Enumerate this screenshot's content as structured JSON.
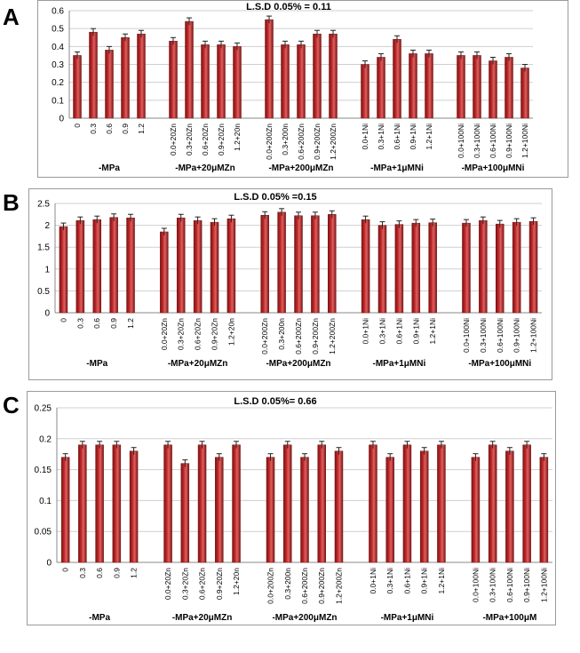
{
  "colors": {
    "bar": "#c0282a",
    "bar_dark": "#7a1414",
    "bar_light": "#e06060",
    "grid": "#cfcfcf",
    "frame": "#9a9a9a"
  },
  "chart_data": [
    {
      "panel": "A",
      "type": "bar",
      "lsd": "L.S.D 0.05% = 0.11",
      "ylim": [
        0,
        0.6
      ],
      "yticks": [
        "0",
        "0.1",
        "0.2",
        "0.3",
        "0.4",
        "0.5",
        "0.6"
      ],
      "groups": [
        {
          "name": "-MPa",
          "categories": [
            "0",
            "0.3",
            "0.6",
            "0.9",
            "1.2"
          ],
          "values": [
            0.35,
            0.48,
            0.38,
            0.45,
            0.47
          ]
        },
        {
          "name": "-MPa+20μMZn",
          "categories": [
            "0.0+20Zn",
            "0.3+20Zn",
            "0.6+20Zn",
            "0.9+20Zn",
            "1.2+20n"
          ],
          "values": [
            0.43,
            0.54,
            0.41,
            0.41,
            0.4
          ]
        },
        {
          "name": "-MPa+200μMZn",
          "categories": [
            "0.0+200Zn",
            "0.3+200n",
            "0.6+200Zn",
            "0.9+200Zn",
            "1.2+200Zn"
          ],
          "values": [
            0.55,
            0.41,
            0.41,
            0.47,
            0.47
          ]
        },
        {
          "name": "-MPa+1μMNi",
          "categories": [
            "0.0+1Ni",
            "0.3+1Ni",
            "0.6+1Ni",
            "0.9+1Ni",
            "1.2+1Ni"
          ],
          "values": [
            0.3,
            0.34,
            0.44,
            0.36,
            0.36
          ]
        },
        {
          "name": "-MPa+100μMNi",
          "categories": [
            "0.0+100Ni",
            "0.3+100Ni",
            "0.6+100Ni",
            "0.9+100Ni",
            "1.2+100Ni"
          ],
          "values": [
            0.35,
            0.35,
            0.32,
            0.34,
            0.28
          ]
        }
      ]
    },
    {
      "panel": "B",
      "type": "bar",
      "lsd": "L.S.D 0.05% =0.15",
      "ylim": [
        0,
        2.5
      ],
      "yticks": [
        "0",
        "0.5",
        "1",
        "1.5",
        "2",
        "2.5"
      ],
      "groups": [
        {
          "name": "-MPa",
          "categories": [
            "0",
            "0.3",
            "0.6",
            "0.9",
            "1.2"
          ],
          "values": [
            1.97,
            2.11,
            2.13,
            2.18,
            2.17
          ]
        },
        {
          "name": "-MPa+20μMZn",
          "categories": [
            "0.0+20Zn",
            "0.3+20Zn",
            "0.6+20Zn",
            "0.9+20Zn",
            "1.2+20n"
          ],
          "values": [
            1.85,
            2.17,
            2.11,
            2.07,
            2.15
          ]
        },
        {
          "name": "-MPa+200μMZn",
          "categories": [
            "0.0+200Zn",
            "0.3+200n",
            "0.6+200Zn",
            "0.9+200Zn",
            "1.2+200Zn"
          ],
          "values": [
            2.23,
            2.3,
            2.22,
            2.22,
            2.25
          ]
        },
        {
          "name": "-MPa+1μMNi",
          "categories": [
            "0.0+1Ni",
            "0.3+1Ni",
            "0.6+1Ni",
            "0.9+1Ni",
            "1.2+1Ni"
          ],
          "values": [
            2.13,
            2.0,
            2.02,
            2.05,
            2.06
          ]
        },
        {
          "name": "-MPa+100μMNi",
          "categories": [
            "0.0+100Ni",
            "0.3+100Ni",
            "0.6+100Ni",
            "0.9+100Ni",
            "1.2+100Ni"
          ],
          "values": [
            2.05,
            2.11,
            2.03,
            2.07,
            2.09
          ]
        }
      ]
    },
    {
      "panel": "C",
      "type": "bar",
      "lsd": "L.S.D 0.05%= 0.66",
      "ylim": [
        0,
        0.25
      ],
      "yticks": [
        "0",
        "0.05",
        "0.1",
        "0.15",
        "0.2",
        "0.25"
      ],
      "groups": [
        {
          "name": "-MPa",
          "categories": [
            "0",
            "0.3",
            "0.6",
            "0.9",
            "1.2"
          ],
          "values": [
            0.17,
            0.19,
            0.19,
            0.19,
            0.18
          ]
        },
        {
          "name": "-MPa+20μMZn",
          "categories": [
            "0.0+20Zn",
            "0.3+20Zn",
            "0.6+20Zn",
            "0.9+20Zn",
            "1.2+20n"
          ],
          "values": [
            0.19,
            0.16,
            0.19,
            0.17,
            0.19
          ]
        },
        {
          "name": "-MPa+200μMZn",
          "categories": [
            "0.0+200Zn",
            "0.3+200n",
            "0.6+200Zn",
            "0.9+200Zn",
            "1.2+200Zn"
          ],
          "values": [
            0.17,
            0.19,
            0.17,
            0.19,
            0.18
          ]
        },
        {
          "name": "-MPa+1μMNi",
          "categories": [
            "0.0+1Ni",
            "0.3+1Ni",
            "0.6+1Ni",
            "0.9+1Ni",
            "1.2+1Ni"
          ],
          "values": [
            0.19,
            0.17,
            0.19,
            0.18,
            0.19
          ]
        },
        {
          "name": "-MPa+100μM",
          "categories": [
            "0.0+100Ni",
            "0.3+100Ni",
            "0.6+100Ni",
            "0.9+100Ni",
            "1.2+100Ni"
          ],
          "values": [
            0.17,
            0.19,
            0.18,
            0.19,
            0.17
          ]
        }
      ]
    }
  ]
}
